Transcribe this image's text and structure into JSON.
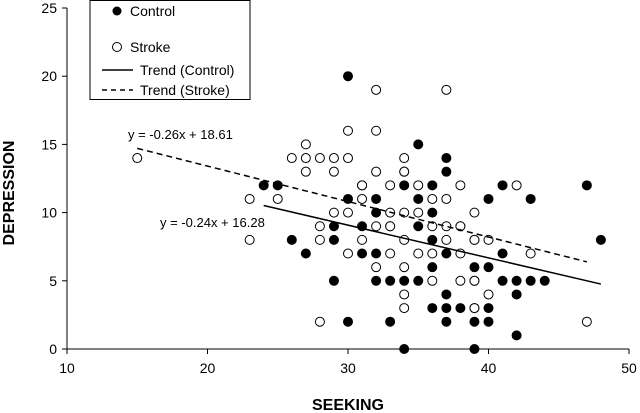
{
  "chart_data": {
    "type": "scatter",
    "xlabel": "SEEKING",
    "ylabel": "DEPRESSION",
    "xlim": [
      10,
      50
    ],
    "ylim": [
      0,
      25
    ],
    "xticks": [
      10,
      20,
      30,
      40,
      50
    ],
    "yticks": [
      0,
      5,
      10,
      15,
      20,
      25
    ],
    "grid": false,
    "legend_position": "top-left",
    "legend": [
      {
        "label": "Control",
        "kind": "filled-circle"
      },
      {
        "label": "Stroke",
        "kind": "open-circle"
      },
      {
        "label": "Trend (Control)",
        "kind": "solid-line"
      },
      {
        "label": "Trend (Stroke)",
        "kind": "dashed-line"
      }
    ],
    "series": [
      {
        "name": "Control",
        "marker": "filled",
        "points": [
          [
            24,
            12
          ],
          [
            25,
            12
          ],
          [
            26,
            8
          ],
          [
            27,
            7
          ],
          [
            29,
            5
          ],
          [
            29,
            8
          ],
          [
            29,
            9
          ],
          [
            30,
            2
          ],
          [
            30,
            20
          ],
          [
            30,
            11
          ],
          [
            31,
            7
          ],
          [
            31,
            9
          ],
          [
            31,
            12
          ],
          [
            32,
            5
          ],
          [
            32,
            7
          ],
          [
            32,
            10
          ],
          [
            32,
            11
          ],
          [
            33,
            2
          ],
          [
            33,
            5
          ],
          [
            33,
            9
          ],
          [
            34,
            0
          ],
          [
            34,
            5
          ],
          [
            34,
            12
          ],
          [
            34,
            13
          ],
          [
            35,
            5
          ],
          [
            35,
            9
          ],
          [
            35,
            11
          ],
          [
            35,
            15
          ],
          [
            36,
            3
          ],
          [
            36,
            6
          ],
          [
            36,
            8
          ],
          [
            36,
            10
          ],
          [
            36,
            12
          ],
          [
            37,
            2
          ],
          [
            37,
            3
          ],
          [
            37,
            4
          ],
          [
            37,
            7
          ],
          [
            37,
            13
          ],
          [
            37,
            14
          ],
          [
            38,
            3
          ],
          [
            38,
            9
          ],
          [
            39,
            0
          ],
          [
            39,
            2
          ],
          [
            39,
            3
          ],
          [
            39,
            5
          ],
          [
            39,
            6
          ],
          [
            39,
            8
          ],
          [
            40,
            2
          ],
          [
            40,
            3
          ],
          [
            40,
            6
          ],
          [
            40,
            11
          ],
          [
            41,
            5
          ],
          [
            41,
            7
          ],
          [
            41,
            12
          ],
          [
            42,
            1
          ],
          [
            42,
            4
          ],
          [
            42,
            5
          ],
          [
            43,
            5
          ],
          [
            43,
            11
          ],
          [
            44,
            5
          ],
          [
            47,
            12
          ],
          [
            48,
            8
          ]
        ]
      },
      {
        "name": "Stroke",
        "marker": "open",
        "points": [
          [
            15,
            14
          ],
          [
            23,
            8
          ],
          [
            23,
            11
          ],
          [
            25,
            11
          ],
          [
            26,
            14
          ],
          [
            27,
            13
          ],
          [
            27,
            14
          ],
          [
            27,
            15
          ],
          [
            28,
            2
          ],
          [
            28,
            8
          ],
          [
            28,
            9
          ],
          [
            28,
            14
          ],
          [
            29,
            10
          ],
          [
            29,
            13
          ],
          [
            29,
            14
          ],
          [
            30,
            7
          ],
          [
            30,
            10
          ],
          [
            30,
            14
          ],
          [
            30,
            16
          ],
          [
            31,
            8
          ],
          [
            31,
            11
          ],
          [
            31,
            12
          ],
          [
            32,
            6
          ],
          [
            32,
            9
          ],
          [
            32,
            13
          ],
          [
            32,
            16
          ],
          [
            32,
            19
          ],
          [
            33,
            7
          ],
          [
            33,
            9
          ],
          [
            33,
            10
          ],
          [
            33,
            12
          ],
          [
            34,
            3
          ],
          [
            34,
            4
          ],
          [
            34,
            6
          ],
          [
            34,
            8
          ],
          [
            34,
            10
          ],
          [
            34,
            13
          ],
          [
            34,
            14
          ],
          [
            35,
            7
          ],
          [
            35,
            10
          ],
          [
            35,
            12
          ],
          [
            36,
            5
          ],
          [
            36,
            7
          ],
          [
            36,
            9
          ],
          [
            36,
            11
          ],
          [
            37,
            8
          ],
          [
            37,
            9
          ],
          [
            37,
            11
          ],
          [
            37,
            19
          ],
          [
            38,
            5
          ],
          [
            38,
            7
          ],
          [
            38,
            9
          ],
          [
            38,
            12
          ],
          [
            39,
            3
          ],
          [
            39,
            5
          ],
          [
            39,
            8
          ],
          [
            39,
            10
          ],
          [
            40,
            4
          ],
          [
            40,
            8
          ],
          [
            42,
            12
          ],
          [
            43,
            7
          ],
          [
            47,
            2
          ]
        ]
      }
    ],
    "trendlines": [
      {
        "name": "Trend (Control)",
        "style": "solid",
        "slope": -0.24,
        "intercept": 16.28,
        "x_range": [
          24,
          48
        ],
        "equation": "y = -0.24x + 16.28"
      },
      {
        "name": "Trend (Stroke)",
        "style": "dashed",
        "slope": -0.26,
        "intercept": 18.61,
        "x_range": [
          15,
          47
        ],
        "equation": "y = -0.26x + 18.61"
      }
    ]
  }
}
